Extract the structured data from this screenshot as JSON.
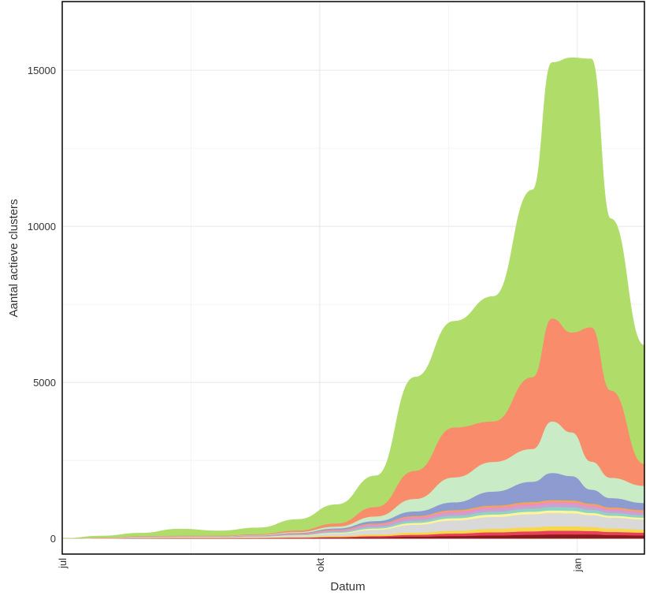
{
  "chart_data": {
    "type": "area",
    "stacked": true,
    "xlabel": "Datum",
    "ylabel": "Aantal actieve clusters",
    "x_ticks": [
      {
        "label": "jul",
        "date": "2020-07-01"
      },
      {
        "label": "okt",
        "date": "2020-10-01"
      },
      {
        "label": "jan",
        "date": "2021-01-01"
      }
    ],
    "y_ticks": [
      0,
      5000,
      10000,
      15000
    ],
    "ylim": [
      -500,
      17200
    ],
    "xlim": [
      "2020-07-01",
      "2021-01-25"
    ],
    "grid": true,
    "x": [
      "2020-07-01",
      "2020-07-15",
      "2020-07-29",
      "2020-08-12",
      "2020-08-26",
      "2020-09-09",
      "2020-09-23",
      "2020-10-07",
      "2020-10-21",
      "2020-11-04",
      "2020-11-18",
      "2020-12-02",
      "2020-12-16",
      "2020-12-23",
      "2020-12-30",
      "2021-01-06",
      "2021-01-13",
      "2021-01-25"
    ],
    "series": [
      {
        "color": "#8b1a1a",
        "values": [
          0,
          2,
          5,
          8,
          8,
          10,
          15,
          25,
          40,
          60,
          80,
          100,
          120,
          130,
          130,
          130,
          110,
          100
        ]
      },
      {
        "color": "#e8405a",
        "values": [
          0,
          2,
          5,
          8,
          8,
          10,
          15,
          25,
          40,
          60,
          80,
          100,
          110,
          120,
          120,
          110,
          100,
          90
        ]
      },
      {
        "color": "#f6d84a",
        "values": [
          0,
          2,
          5,
          8,
          8,
          10,
          20,
          30,
          50,
          70,
          90,
          110,
          130,
          140,
          140,
          130,
          110,
          100
        ]
      },
      {
        "color": "#d9d9d9",
        "values": [
          0,
          5,
          10,
          15,
          15,
          25,
          40,
          80,
          150,
          250,
          330,
          380,
          420,
          430,
          420,
          380,
          350,
          320
        ]
      },
      {
        "color": "#fdf59a",
        "values": [
          0,
          2,
          5,
          5,
          5,
          8,
          15,
          25,
          40,
          60,
          70,
          80,
          80,
          80,
          80,
          70,
          60,
          60
        ]
      },
      {
        "color": "#8fd3c7",
        "values": [
          0,
          2,
          5,
          5,
          5,
          8,
          15,
          30,
          50,
          70,
          80,
          90,
          100,
          110,
          110,
          100,
          90,
          80
        ]
      },
      {
        "color": "#c7a3cf",
        "values": [
          0,
          2,
          5,
          5,
          5,
          8,
          15,
          30,
          50,
          70,
          80,
          90,
          90,
          100,
          100,
          90,
          80,
          70
        ]
      },
      {
        "color": "#f08ec0",
        "values": [
          0,
          2,
          5,
          5,
          5,
          8,
          15,
          25,
          40,
          50,
          60,
          60,
          70,
          70,
          70,
          60,
          55,
          50
        ]
      },
      {
        "color": "#f4a940",
        "values": [
          0,
          2,
          5,
          5,
          5,
          5,
          10,
          15,
          20,
          30,
          40,
          45,
          50,
          50,
          50,
          45,
          40,
          40
        ]
      },
      {
        "color": "#8e9bd0",
        "values": [
          0,
          2,
          5,
          5,
          5,
          10,
          20,
          40,
          80,
          150,
          250,
          450,
          650,
          870,
          780,
          450,
          300,
          230
        ]
      },
      {
        "color": "#c9ebc5",
        "values": [
          0,
          3,
          8,
          10,
          10,
          15,
          30,
          60,
          150,
          400,
          800,
          950,
          1050,
          1650,
          1400,
          900,
          650,
          550
        ]
      },
      {
        "color": "#f98c6b",
        "values": [
          0,
          5,
          10,
          15,
          15,
          25,
          50,
          100,
          300,
          900,
          1600,
          1300,
          2300,
          3300,
          3200,
          4300,
          2800,
          700
        ]
      },
      {
        "color": "#b0dd6a",
        "values": [
          0,
          50,
          100,
          210,
          150,
          200,
          350,
          600,
          1000,
          3000,
          3400,
          4000,
          6000,
          8200,
          8800,
          8600,
          5500,
          3800
        ]
      }
    ]
  }
}
